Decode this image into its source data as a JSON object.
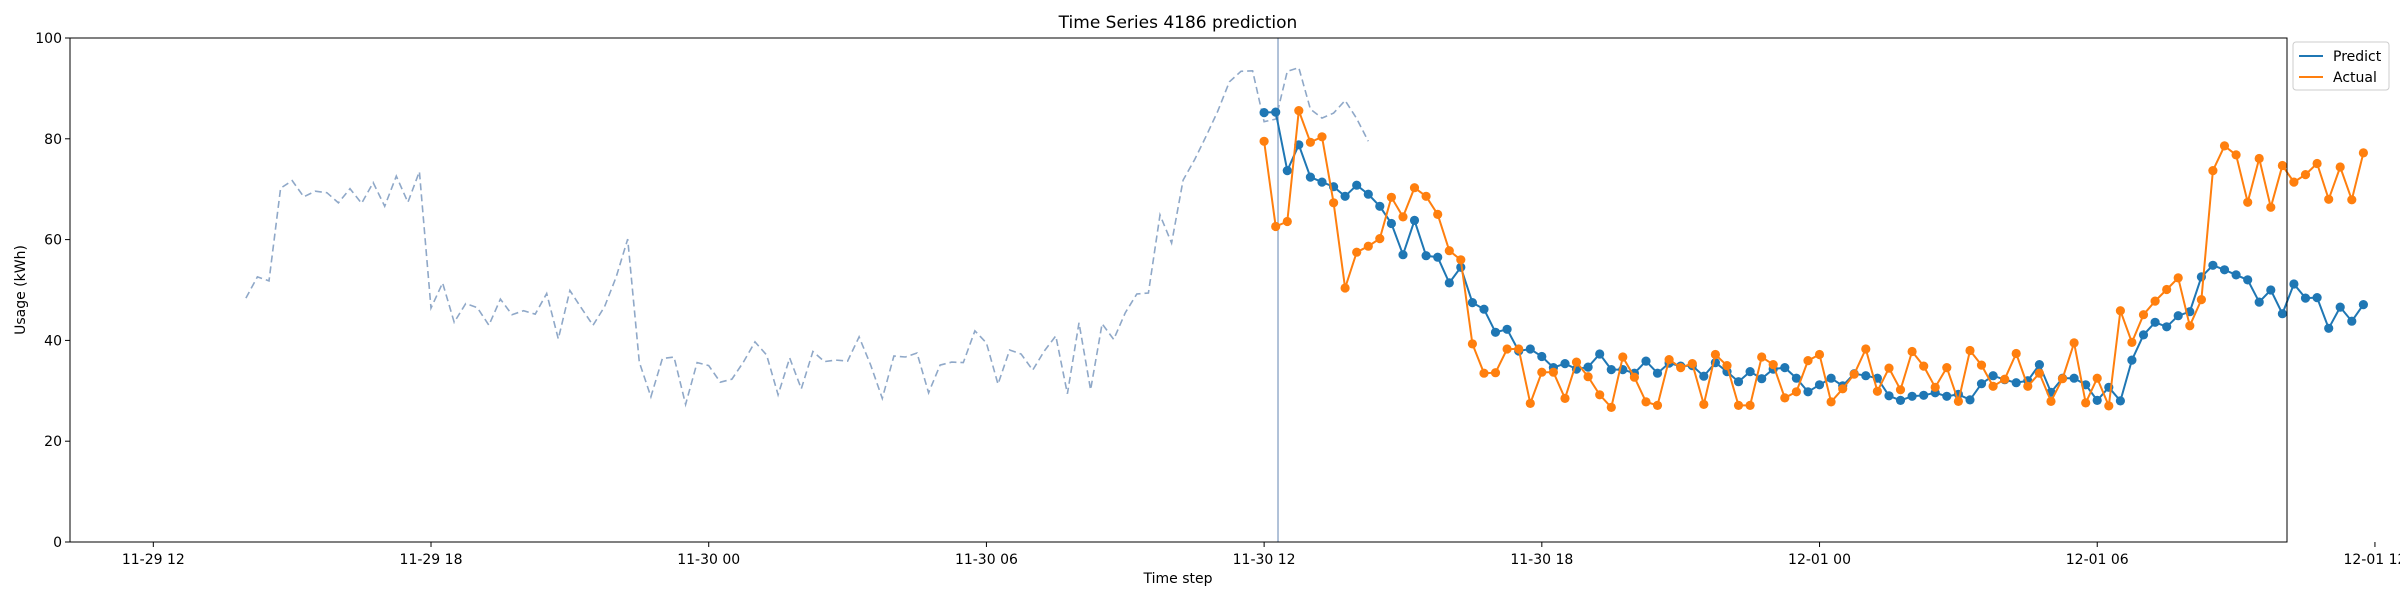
{
  "chart_data": {
    "type": "line",
    "title": "Time Series 4186 prediction",
    "xlabel": "Time step",
    "ylabel": "Usage (kWh)",
    "ylim": [
      0,
      100
    ],
    "yticks": [
      0,
      20,
      40,
      60,
      80,
      100
    ],
    "x_unit": "hours from 11-29 12:00",
    "xlim": [
      -1.8,
      46.1
    ],
    "xticks": [
      {
        "value": 0,
        "label": "11-29 12"
      },
      {
        "value": 6,
        "label": "11-29 18"
      },
      {
        "value": 12,
        "label": "11-30 00"
      },
      {
        "value": 18,
        "label": "11-30 06"
      },
      {
        "value": 24,
        "label": "11-30 12"
      },
      {
        "value": 30,
        "label": "11-30 18"
      },
      {
        "value": 36,
        "label": "12-01 00"
      },
      {
        "value": 42,
        "label": "12-01 06"
      },
      {
        "value": 48,
        "label": "12-01 12"
      }
    ],
    "forecast_start": 24.3,
    "history": {
      "x_start": 2.0,
      "x_step": 0.25,
      "values": [
        48.4,
        52.6,
        51.8,
        70.2,
        71.7,
        68.5,
        69.6,
        69.3,
        67.3,
        70.1,
        67.2,
        71.3,
        66.6,
        72.6,
        67.4,
        73.5,
        46.4,
        51.4,
        43.6,
        47.3,
        46.5,
        43.0,
        48.2,
        45.1,
        45.9,
        45.2,
        49.3,
        40.3,
        49.9,
        46.4,
        43.0,
        46.7,
        52.6,
        60.1,
        35.7,
        28.8,
        36.4,
        36.7,
        27.3,
        35.6,
        35.0,
        31.7,
        32.3,
        35.7,
        39.7,
        37.1,
        29.2,
        36.5,
        30.4,
        37.8,
        35.8,
        36.1,
        35.9,
        40.7,
        35.1,
        28.5,
        36.9,
        36.7,
        37.5,
        29.6,
        35.1,
        35.7,
        35.6,
        41.9,
        39.5,
        31.3,
        38.1,
        37.3,
        34.1,
        37.9,
        40.9,
        29.4,
        43.5,
        30.2,
        43.3,
        40.2,
        45.5,
        49.2,
        49.4,
        64.9,
        59.3,
        71.8,
        75.9,
        80.6,
        85.5,
        91.3,
        93.4,
        93.5,
        83.4,
        83.9,
        93.4,
        94.1,
        85.9,
        84.1,
        85.1,
        87.6,
        84.0,
        79.5
      ]
    },
    "series": [
      {
        "name": "Predict",
        "color": "#1f77b4",
        "x_start": 24.0,
        "x_step": 0.25,
        "values": [
          85.2,
          85.3,
          73.7,
          78.8,
          72.4,
          71.4,
          70.5,
          68.6,
          70.8,
          69.0,
          66.6,
          63.2,
          57.0,
          63.8,
          56.8,
          56.5,
          51.4,
          54.5,
          47.5,
          46.2,
          41.6,
          42.2,
          37.9,
          38.3,
          36.8,
          34.6,
          35.4,
          34.3,
          34.7,
          37.3,
          34.2,
          34.2,
          33.5,
          35.9,
          33.5,
          35.5,
          34.9,
          35.0,
          32.9,
          35.6,
          33.8,
          31.8,
          33.8,
          32.4,
          34.3,
          34.6,
          32.5,
          29.8,
          31.2,
          32.5,
          31.0,
          33.4,
          33.0,
          32.5,
          29.0,
          28.1,
          28.9,
          29.1,
          29.6,
          28.9,
          29.3,
          28.2,
          31.4,
          33.0,
          32.2,
          31.6,
          32.0,
          35.2,
          29.7,
          32.5,
          32.5,
          31.2,
          28.1,
          30.7,
          28.0,
          36.1,
          41.1,
          43.6,
          42.7,
          44.9,
          45.7,
          52.6,
          54.9,
          54.0,
          53.0,
          52.0,
          47.6,
          50.0,
          45.3,
          51.2,
          48.4,
          48.5,
          42.4,
          46.6,
          43.8,
          47.1
        ]
      },
      {
        "name": "Actual",
        "color": "#ff7f0e",
        "x_start": 24.0,
        "x_step": 0.25,
        "values": [
          79.5,
          62.6,
          63.6,
          85.6,
          79.3,
          80.4,
          67.3,
          50.4,
          57.5,
          58.7,
          60.2,
          68.4,
          64.5,
          70.3,
          68.6,
          65.0,
          57.8,
          56.0,
          39.3,
          33.5,
          33.6,
          38.3,
          38.3,
          27.5,
          33.7,
          33.7,
          28.5,
          35.7,
          32.8,
          29.2,
          26.7,
          36.7,
          32.7,
          27.8,
          27.1,
          36.2,
          34.6,
          35.4,
          27.3,
          37.2,
          35.0,
          27.1,
          27.1,
          36.7,
          35.2,
          28.6,
          29.8,
          36.0,
          37.2,
          27.8,
          30.4,
          33.3,
          38.3,
          29.9,
          34.5,
          30.2,
          37.8,
          34.9,
          30.7,
          34.6,
          27.9,
          38.0,
          35.1,
          30.9,
          32.3,
          37.4,
          30.9,
          33.5,
          27.9,
          32.4,
          39.5,
          27.6,
          32.5,
          27.0,
          45.9,
          39.6,
          45.1,
          47.8,
          50.1,
          52.4,
          42.9,
          48.1,
          73.7,
          78.6,
          76.8,
          67.4,
          76.1,
          66.4,
          74.7,
          71.4,
          72.9,
          75.1,
          68.0,
          74.4,
          67.9,
          77.2
        ]
      }
    ],
    "legend": {
      "placement": "outside-top-right",
      "entries": [
        "Predict",
        "Actual"
      ]
    },
    "grid": false
  }
}
